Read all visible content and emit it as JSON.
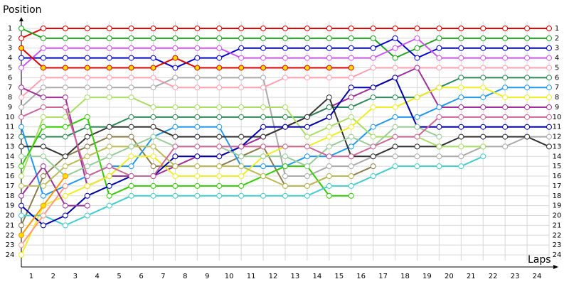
{
  "chart_data": {
    "type": "line",
    "ylabel": "Position",
    "xlabel": "Laps",
    "x": [
      0,
      1,
      2,
      3,
      4,
      5,
      6,
      7,
      8,
      9,
      10,
      11,
      12,
      13,
      14,
      15,
      16,
      17,
      18,
      19,
      20,
      21,
      22,
      23,
      24
    ],
    "xlim": [
      0,
      24
    ],
    "ylim": [
      1,
      24
    ],
    "y_inverted": true,
    "grid": true,
    "xticks": [
      1,
      2,
      3,
      4,
      5,
      6,
      7,
      8,
      9,
      10,
      11,
      12,
      13,
      14,
      15,
      16,
      17,
      18,
      19,
      20,
      21,
      22,
      23,
      24
    ],
    "yticks": [
      1,
      2,
      3,
      4,
      5,
      6,
      7,
      8,
      9,
      10,
      11,
      12,
      13,
      14,
      15,
      16,
      17,
      18,
      19,
      20,
      21,
      22,
      23,
      24
    ],
    "series": [
      {
        "color": "#e60000",
        "values": [
          2,
          1,
          1,
          1,
          1,
          1,
          1,
          1,
          1,
          1,
          1,
          1,
          1,
          1,
          1,
          1,
          1,
          1,
          1,
          1,
          1,
          1,
          1,
          1,
          1
        ]
      },
      {
        "color": "#1fa31f",
        "values": [
          1,
          2,
          2,
          2,
          2,
          2,
          2,
          2,
          2,
          2,
          2,
          2,
          2,
          2,
          2,
          2,
          2,
          4,
          3,
          2,
          2,
          2,
          2,
          2,
          2
        ]
      },
      {
        "color": "#0000cc",
        "values": [
          4,
          4,
          4,
          4,
          4,
          4,
          4,
          5,
          4,
          4,
          3,
          3,
          3,
          3,
          3,
          3,
          3,
          2,
          4,
          3,
          3,
          3,
          3,
          3,
          3
        ]
      },
      {
        "color": "#cc55ee",
        "values": [
          5,
          3,
          3,
          3,
          3,
          3,
          3,
          3,
          3,
          3,
          4,
          4,
          4,
          4,
          4,
          4,
          4,
          3,
          2,
          4,
          4,
          4,
          4,
          4,
          4
        ]
      },
      {
        "color": "#dd0000",
        "marker_color": "#ffdd00",
        "values": [
          3,
          5,
          5,
          5,
          5,
          5,
          5,
          4,
          5,
          5,
          5,
          5,
          5,
          5,
          5,
          5,
          null,
          null,
          null,
          null,
          null,
          null,
          null,
          null,
          null
        ]
      },
      {
        "color": "#ff9fb0",
        "values": [
          8,
          6,
          6,
          6,
          6,
          6,
          6,
          7,
          7,
          7,
          7,
          7,
          6,
          6,
          6,
          6,
          5,
          5,
          5,
          5,
          5,
          5,
          5,
          5,
          5
        ]
      },
      {
        "color": "#aaaaaa",
        "values": [
          9,
          7,
          7,
          7,
          7,
          7,
          7,
          6,
          6,
          6,
          6,
          6,
          16,
          16,
          15,
          15,
          14,
          14,
          14,
          14,
          14,
          13,
          13,
          12,
          12
        ]
      },
      {
        "color": "#a0309a",
        "values": [
          7,
          8,
          8,
          17,
          16,
          16,
          16,
          15,
          14,
          14,
          13,
          12,
          11,
          10,
          9,
          8,
          7,
          6,
          5,
          9,
          9,
          9,
          9,
          9,
          9
        ]
      },
      {
        "color": "#2e8b57",
        "values": [
          12,
          12,
          12,
          11,
          11,
          10,
          10,
          10,
          10,
          10,
          10,
          10,
          10,
          10,
          9,
          9,
          8,
          8,
          8,
          7,
          6,
          6,
          6,
          6,
          6
        ]
      },
      {
        "color": "#8b7d4b",
        "values": [
          21,
          16,
          14,
          13,
          12,
          12,
          15,
          15,
          15,
          15,
          14,
          13,
          17,
          17,
          16,
          16,
          15,
          null,
          null,
          null,
          null,
          null,
          null,
          null,
          null
        ]
      },
      {
        "color": "#2299ee",
        "values": [
          11,
          18,
          17,
          16,
          15,
          15,
          12,
          11,
          11,
          11,
          15,
          15,
          15,
          14,
          14,
          13,
          11,
          10,
          10,
          9,
          8,
          8,
          7,
          7,
          7
        ]
      },
      {
        "color": "#333333",
        "values": [
          13,
          13,
          14,
          12,
          11,
          11,
          11,
          12,
          12,
          12,
          12,
          12,
          11,
          10,
          8,
          14,
          14,
          13,
          13,
          13,
          12,
          12,
          12,
          12,
          13
        ]
      },
      {
        "color": "#aadd66",
        "values": [
          16,
          10,
          10,
          8,
          8,
          8,
          9,
          9,
          9,
          9,
          9,
          9,
          9,
          12,
          11,
          10,
          12,
          12,
          12,
          13,
          13,
          13,
          null,
          null,
          null
        ]
      },
      {
        "color": "#33cc00",
        "values": [
          15,
          11,
          11,
          10,
          18,
          17,
          17,
          17,
          17,
          17,
          17,
          16,
          15,
          15,
          18,
          18,
          null,
          null,
          null,
          null,
          null,
          null,
          null,
          null,
          null
        ]
      },
      {
        "color": "#eeee22",
        "values": [
          24,
          19,
          18,
          17,
          16,
          14,
          14,
          16,
          16,
          16,
          16,
          14,
          13,
          13,
          12,
          11,
          9,
          9,
          8,
          7,
          7,
          7,
          8,
          8,
          8
        ]
      },
      {
        "color": "#44cccc",
        "values": [
          20,
          20,
          21,
          20,
          19,
          18,
          18,
          18,
          18,
          18,
          18,
          18,
          18,
          18,
          17,
          17,
          16,
          15,
          15,
          15,
          15,
          14,
          null,
          null,
          null
        ]
      },
      {
        "color": "#0000aa",
        "values": [
          19,
          21,
          20,
          18,
          17,
          16,
          16,
          14,
          14,
          14,
          13,
          11,
          11,
          11,
          10,
          7,
          7,
          6,
          11,
          11,
          11,
          11,
          11,
          11,
          11
        ]
      },
      {
        "color": "#ff9988",
        "values": [
          23,
          20,
          17,
          null,
          null,
          null,
          null,
          null,
          null,
          null,
          null,
          null,
          null,
          null,
          null,
          null,
          null,
          null,
          null,
          null,
          null,
          null,
          null,
          null,
          null
        ]
      },
      {
        "color": "#993399",
        "values": [
          18,
          15,
          19,
          19,
          null,
          null,
          null,
          null,
          null,
          null,
          null,
          null,
          null,
          null,
          null,
          null,
          null,
          null,
          null,
          null,
          null,
          null,
          null,
          null,
          null
        ]
      },
      {
        "color": "#bbbb55",
        "values": [
          17,
          17,
          15,
          14,
          13,
          13,
          13,
          15,
          15,
          15,
          15,
          16,
          17,
          17,
          16,
          16,
          null,
          null,
          null,
          null,
          null,
          null,
          null,
          null,
          null
        ]
      },
      {
        "color": "#99cc99",
        "values": [
          14,
          14,
          16,
          15,
          14,
          13,
          12,
          13,
          13,
          13,
          14,
          14,
          14,
          15,
          13,
          12,
          13,
          11,
          11,
          12,
          null,
          null,
          null,
          null,
          null
        ]
      },
      {
        "color": "#ff9900",
        "marker_color": "#ffdd00",
        "values": [
          22,
          19,
          16,
          null,
          null,
          null,
          null,
          null,
          null,
          null,
          null,
          null,
          null,
          null,
          null,
          null,
          null,
          null,
          null,
          null,
          null,
          null,
          null,
          null,
          null
        ]
      },
      {
        "color": "#cc6699",
        "values": [
          10,
          9,
          9,
          16,
          15,
          16,
          16,
          13,
          13,
          13,
          13,
          13,
          13,
          13,
          14,
          14,
          13,
          12,
          12,
          10,
          10,
          10,
          10,
          10,
          10
        ]
      }
    ]
  }
}
